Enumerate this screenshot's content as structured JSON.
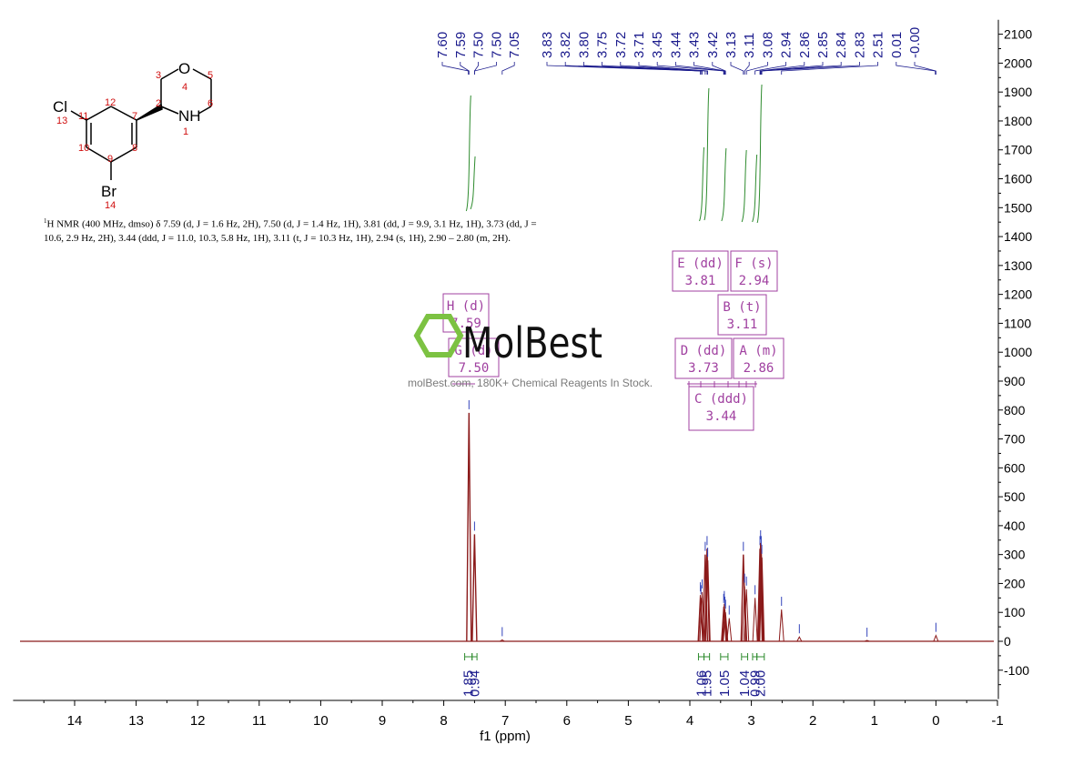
{
  "description": {
    "sup": "1",
    "text": "H NMR (400 MHz, dmso) δ 7.59 (d, J = 1.6 Hz, 2H), 7.50 (d, J = 1.4 Hz, 1H), 3.81 (dd, J = 9.9, 3.1 Hz, 1H), 3.73 (dd, J = 10.6, 2.9 Hz, 2H), 3.44 (ddd, J = 11.0, 10.3, 5.8 Hz, 1H), 3.11 (t, J = 10.3 Hz, 1H), 2.94 (s, 1H), 2.90 – 2.80 (m, 2H)."
  },
  "watermark": {
    "brand": "MolBest",
    "tagline": "molBest.com, 180K+ Chemical Reagents In Stock."
  },
  "structure": {
    "atoms": [
      "O",
      "NH",
      "Cl",
      "Br"
    ],
    "numbers": [
      "1",
      "2",
      "3",
      "4",
      "5",
      "6",
      "7",
      "8",
      "9",
      "10",
      "11",
      "12",
      "13",
      "14"
    ]
  },
  "colors": {
    "spectrum": "#8b1a1a",
    "peak_label": "#1a1a8c",
    "integral": "#2e8b2e",
    "multiplet_box": "#a040a0",
    "atom_number": "#d01010"
  },
  "chart_data": {
    "type": "line",
    "title": "",
    "xlabel": "f1 (ppm)",
    "ylabel": "",
    "xlim": [
      15.0,
      -1.0
    ],
    "ylim": [
      -200,
      2150
    ],
    "x_axis_reversed": true,
    "grid": false,
    "x_ticks": [
      14,
      13,
      12,
      11,
      10,
      9,
      8,
      7,
      6,
      5,
      4,
      3,
      2,
      1,
      0,
      -1
    ],
    "y_ticks": [
      -100,
      0,
      100,
      200,
      300,
      400,
      500,
      600,
      700,
      800,
      900,
      1000,
      1100,
      1200,
      1300,
      1400,
      1500,
      1600,
      1700,
      1800,
      1900,
      2000,
      2100
    ],
    "peaks": [
      {
        "ppm": 7.59,
        "height": 790
      },
      {
        "ppm": 7.5,
        "height": 370
      },
      {
        "ppm": 7.05,
        "height": 5
      },
      {
        "ppm": 3.83,
        "height": 160
      },
      {
        "ppm": 3.82,
        "height": 150
      },
      {
        "ppm": 3.8,
        "height": 170
      },
      {
        "ppm": 3.75,
        "height": 300
      },
      {
        "ppm": 3.72,
        "height": 320
      },
      {
        "ppm": 3.71,
        "height": 280
      },
      {
        "ppm": 3.45,
        "height": 120
      },
      {
        "ppm": 3.44,
        "height": 130
      },
      {
        "ppm": 3.43,
        "height": 110
      },
      {
        "ppm": 3.42,
        "height": 100
      },
      {
        "ppm": 3.36,
        "height": 80
      },
      {
        "ppm": 3.13,
        "height": 300
      },
      {
        "ppm": 3.11,
        "height": 190
      },
      {
        "ppm": 3.08,
        "height": 180
      },
      {
        "ppm": 2.94,
        "height": 150
      },
      {
        "ppm": 2.86,
        "height": 320
      },
      {
        "ppm": 2.85,
        "height": 340
      },
      {
        "ppm": 2.84,
        "height": 320
      },
      {
        "ppm": 2.83,
        "height": 290
      },
      {
        "ppm": 2.51,
        "height": 110
      },
      {
        "ppm": 2.22,
        "height": 15
      },
      {
        "ppm": 1.12,
        "height": 3
      },
      {
        "ppm": 0.0,
        "height": 20
      }
    ],
    "peak_labels_group1": [
      "7.60",
      "7.59",
      "7.50",
      "7.50",
      "7.05"
    ],
    "peak_labels_group2": [
      "3.83",
      "3.82",
      "3.80",
      "3.75",
      "3.72",
      "3.71",
      "3.45",
      "3.44",
      "3.43",
      "3.42",
      "3.13",
      "3.11",
      "3.08",
      "2.94",
      "2.86",
      "2.85",
      "2.84",
      "2.83",
      "2.51",
      "0.01",
      "-0.00"
    ],
    "integrals": [
      {
        "from": 7.66,
        "to": 7.54,
        "value": "1.85"
      },
      {
        "from": 7.54,
        "to": 7.46,
        "value": "0.94"
      },
      {
        "from": 3.86,
        "to": 3.77,
        "value": "1.06"
      },
      {
        "from": 3.77,
        "to": 3.68,
        "value": "1.95"
      },
      {
        "from": 3.5,
        "to": 3.38,
        "value": "1.05"
      },
      {
        "from": 3.16,
        "to": 3.06,
        "value": "1.04"
      },
      {
        "from": 2.98,
        "to": 2.91,
        "value": "0.99"
      },
      {
        "from": 2.91,
        "to": 2.79,
        "value": "2.00"
      }
    ],
    "multiplets": [
      {
        "id": "H",
        "mult": "(d)",
        "shift": "7.59"
      },
      {
        "id": "G",
        "mult": "(d)",
        "shift": "7.50"
      },
      {
        "id": "E",
        "mult": "(dd)",
        "shift": "3.81"
      },
      {
        "id": "F",
        "mult": "(s)",
        "shift": "2.94"
      },
      {
        "id": "B",
        "mult": "(t)",
        "shift": "3.11"
      },
      {
        "id": "D",
        "mult": "(dd)",
        "shift": "3.73"
      },
      {
        "id": "A",
        "mult": "(m)",
        "shift": "2.86"
      },
      {
        "id": "C",
        "mult": "(ddd)",
        "shift": "3.44"
      }
    ]
  }
}
